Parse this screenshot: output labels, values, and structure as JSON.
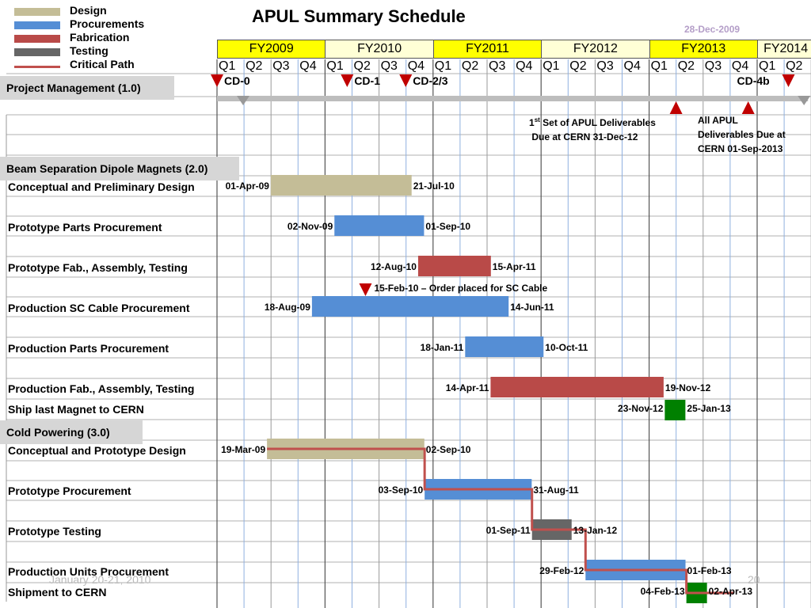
{
  "chart_data": {
    "type": "gantt",
    "title": "APUL Summary Schedule",
    "date": "28-Dec-2009",
    "legend": [
      {
        "label": "Design",
        "color": "#c4bd97"
      },
      {
        "label": "Procurements",
        "color": "#558ed5"
      },
      {
        "label": "Fabrication",
        "color": "#b94a48"
      },
      {
        "label": "Testing",
        "color": "#666666"
      },
      {
        "label": "Critical Path",
        "color": "#c0504d"
      }
    ],
    "fiscal_years": [
      "FY2009",
      "FY2010",
      "FY2011",
      "FY2012",
      "FY2013",
      "FY2014"
    ],
    "quarters": [
      "Q1",
      "Q2",
      "Q3",
      "Q4",
      "Q1",
      "Q2",
      "Q3",
      "Q4",
      "Q1",
      "Q2",
      "Q3",
      "Q4",
      "Q1",
      "Q2",
      "Q3",
      "Q4",
      "Q1",
      "Q2",
      "Q3",
      "Q4",
      "Q1",
      "Q2"
    ],
    "sections": [
      {
        "name": "Project Management (1.0)"
      },
      {
        "name": "Beam Separation Dipole Magnets (2.0)"
      },
      {
        "name": "Cold Powering  (3.0)"
      }
    ],
    "milestones": [
      {
        "label": "CD-0",
        "date": "2008-10-01"
      },
      {
        "label": "CD-1",
        "date": "2009-12-15"
      },
      {
        "label": "CD-2/3",
        "date": "2010-07-01"
      },
      {
        "label": "CD-4b",
        "date": "2014-01-15"
      }
    ],
    "deliverables": [
      {
        "date": "2012-12-31",
        "text": "1st Set of APUL Deliverables Due at CERN 31-Dec-12",
        "sup_line": [
          "1",
          "st",
          " Set of APUL Deliverables"
        ],
        "line2": " Due at CERN 31-Dec-12"
      },
      {
        "date": "2013-09-01",
        "text": "All APUL Deliverables Due at CERN 01-Sep-2013",
        "lines": [
          "All APUL",
          "Deliverables Due at",
          "CERN 01-Sep-2013"
        ]
      }
    ],
    "order_note": "15-Feb-10 – Order placed for SC Cable",
    "tasks": [
      {
        "name": "Conceptual and Preliminary Design",
        "type": "design",
        "start": "01-Apr-09",
        "end": "21-Jul-10"
      },
      {
        "name": "Prototype Parts Procurement",
        "type": "procurement",
        "start": "02-Nov-09",
        "end": "01-Sep-10"
      },
      {
        "name": "Prototype Fab., Assembly, Testing",
        "type": "fabrication",
        "start": "12-Aug-10",
        "end": "15-Apr-11"
      },
      {
        "name": "Production SC Cable Procurement",
        "type": "procurement",
        "start": "18-Aug-09",
        "end": "14-Jun-11"
      },
      {
        "name": "Production Parts Procurement",
        "type": "procurement",
        "start": "18-Jan-11",
        "end": "10-Oct-11"
      },
      {
        "name": "Production Fab., Assembly, Testing",
        "type": "fabrication",
        "start": "14-Apr-11",
        "end": "19-Nov-12"
      },
      {
        "name": "Ship last Magnet to CERN",
        "type": "shipment",
        "start": "23-Nov-12",
        "end": "25-Jan-13"
      },
      {
        "name": "Conceptual and Prototype Design",
        "type": "design",
        "start": "19-Mar-09",
        "end": "02-Sep-10"
      },
      {
        "name": "Prototype Procurement",
        "type": "procurement",
        "start": "03-Sep-10",
        "end": "31-Aug-11"
      },
      {
        "name": "Prototype Testing",
        "type": "testing",
        "start": "01-Sep-11",
        "end": "13-Jan-12"
      },
      {
        "name": "Production Units Procurement",
        "type": "procurement",
        "start": "29-Feb-12",
        "end": "01-Feb-13"
      },
      {
        "name": "Shipment to CERN",
        "type": "shipment",
        "start": "04-Feb-13",
        "end": "02-Apr-13"
      }
    ]
  },
  "footer": {
    "left": "January 20-21, 2010",
    "page": "20"
  }
}
